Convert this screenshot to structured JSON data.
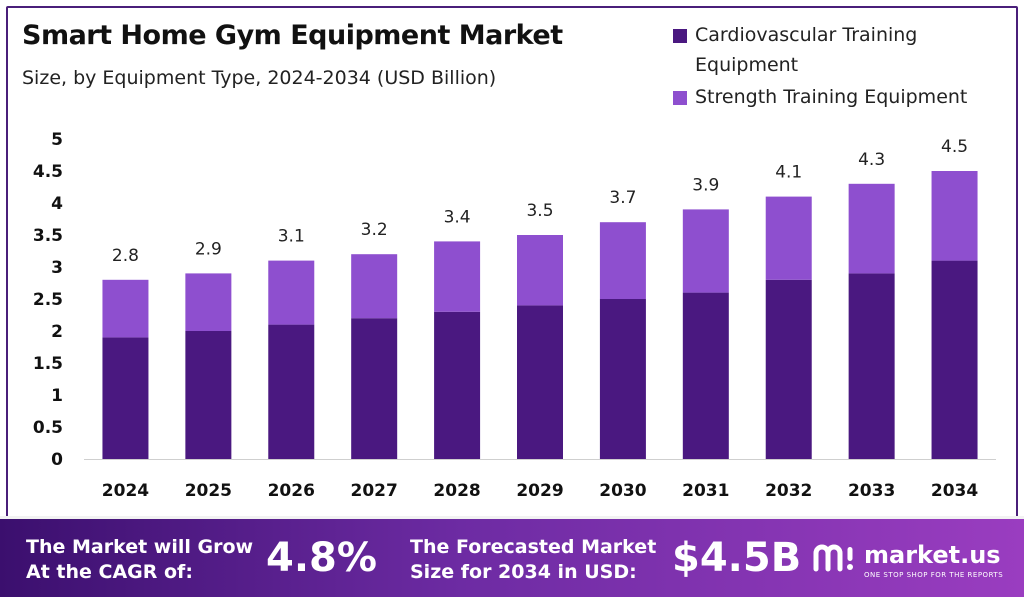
{
  "header": {
    "title": "Smart Home Gym Equipment Market",
    "subtitle": "Size, by Equipment Type, 2024-2034 (USD Billion)"
  },
  "colors": {
    "cardio": "#4a1880",
    "strength": "#8e4fcf",
    "frame": "#4a1f7a"
  },
  "chart_data": {
    "type": "bar",
    "stacked": true,
    "categories": [
      "2024",
      "2025",
      "2026",
      "2027",
      "2028",
      "2029",
      "2030",
      "2031",
      "2032",
      "2033",
      "2034"
    ],
    "series": [
      {
        "name": "Cardiovascular Training Equipment",
        "values": [
          1.9,
          2.0,
          2.1,
          2.2,
          2.3,
          2.4,
          2.5,
          2.6,
          2.8,
          2.9,
          3.1
        ]
      },
      {
        "name": "Strength Training Equipment",
        "values": [
          0.9,
          0.9,
          1.0,
          1.0,
          1.1,
          1.1,
          1.2,
          1.3,
          1.3,
          1.4,
          1.4
        ]
      }
    ],
    "totals": [
      "2.8",
      "2.9",
      "3.1",
      "3.2",
      "3.4",
      "3.5",
      "3.7",
      "3.9",
      "4.1",
      "4.3",
      "4.5"
    ],
    "yticks": [
      "0",
      "0.5",
      "1",
      "1.5",
      "2",
      "2.5",
      "3",
      "3.5",
      "4",
      "4.5",
      "5"
    ],
    "ylim": [
      0,
      5
    ],
    "grid": false,
    "legend_position": "top-right"
  },
  "legend": {
    "cardio_label": "Cardiovascular Training Equipment",
    "strength_label": "Strength Training Equipment"
  },
  "footer": {
    "cagr_line1": "The Market will Grow",
    "cagr_line2": "At the CAGR of:",
    "cagr_value": "4.8%",
    "forecast_line1": "The Forecasted Market",
    "forecast_line2": "Size for 2034 in USD:",
    "forecast_value": "$4.5B",
    "brand_name": "market.us",
    "brand_tagline": "ONE STOP SHOP FOR THE REPORTS"
  }
}
